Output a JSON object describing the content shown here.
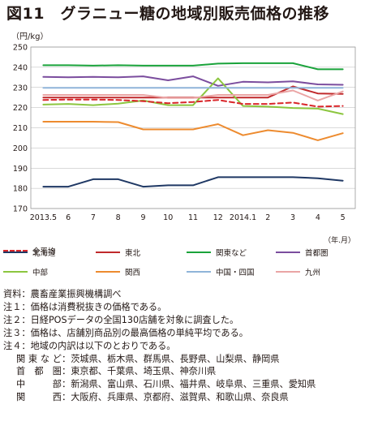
{
  "title": "図11　グラニュー糖の地域別販売価格の推移",
  "chart_data": {
    "type": "line",
    "y_unit": "（円/kg）",
    "x_unit": "（年.月）",
    "categories": [
      "2013.5",
      "6",
      "7",
      "8",
      "9",
      "10",
      "11",
      "12",
      "2014.1",
      "2",
      "3",
      "4",
      "5"
    ],
    "ylim": [
      170,
      250
    ],
    "yticks": [
      170,
      180,
      190,
      200,
      210,
      220,
      230,
      240,
      250
    ],
    "grid": true,
    "legend_position": "bottom",
    "series": [
      {
        "name": "北海道",
        "color": "#1f3864",
        "dash": false,
        "values": [
          180.8,
          180.8,
          184.5,
          184.5,
          180.8,
          181.5,
          181.5,
          185.5,
          185.5,
          185.5,
          185.5,
          185,
          183.8
        ]
      },
      {
        "name": "東北",
        "color": "#c0292b",
        "dash": false,
        "values": [
          225,
          225,
          225,
          225,
          225,
          225,
          225,
          225,
          225,
          225,
          230.5,
          227,
          226.8
        ]
      },
      {
        "name": "関東など",
        "color": "#1aa33b",
        "dash": false,
        "values": [
          241,
          241,
          240.8,
          241,
          240.8,
          240.8,
          240.8,
          241.8,
          242,
          242,
          242,
          239,
          239
        ]
      },
      {
        "name": "首都圏",
        "color": "#7b4d9e",
        "dash": false,
        "values": [
          235.2,
          235,
          235.2,
          235,
          235.5,
          233.5,
          235.5,
          230.8,
          232.8,
          232.5,
          233,
          231.5,
          231.3
        ]
      },
      {
        "name": "中部",
        "color": "#8cc63f",
        "dash": false,
        "values": [
          221.5,
          221.8,
          221.2,
          222,
          223.5,
          221.2,
          221.2,
          234.5,
          220.8,
          220.5,
          219.8,
          219.5,
          216.8
        ]
      },
      {
        "name": "関西",
        "color": "#ed8b2f",
        "dash": false,
        "values": [
          213,
          213,
          213,
          212.8,
          209.2,
          209.2,
          209.2,
          211.8,
          206.3,
          208.8,
          207.5,
          203.8,
          207.3
        ]
      },
      {
        "name": "中国・四国",
        "color": "#8fb4d9",
        "dash": false,
        "values": [
          229.8,
          229.8,
          229.8,
          229.8,
          229.8,
          229.8,
          229.8,
          229.8,
          229.8,
          229.8,
          229.8,
          229.8,
          229.8
        ]
      },
      {
        "name": "九州",
        "color": "#eaa5a5",
        "dash": false,
        "values": [
          226.3,
          226.3,
          226.3,
          226.3,
          226.3,
          224.8,
          224.8,
          226.3,
          226.3,
          226.3,
          228.5,
          223.5,
          228
        ]
      },
      {
        "name": "全平均",
        "color": "#d9262a",
        "dash": true,
        "values": [
          223.8,
          224,
          224,
          223.8,
          223.2,
          222.2,
          222.8,
          223.8,
          221.8,
          221.8,
          222.5,
          220.5,
          220.8
        ]
      }
    ]
  },
  "notes": [
    "資料：農畜産業振興機構調べ",
    "注１：価格は消費税抜きの価格である。",
    "注２：日経POSデータの全国130店舗を対象に調査した。",
    "注３：価格は、店舗別商品別の最高価格の単純平均である。",
    "注４：地域の内訳は以下のとおりである。"
  ],
  "regions": [
    {
      "key": "関東など",
      "value": "：茨城県、栃木県、群馬県、長野県、山梨県、静岡県"
    },
    {
      "key": "首都圏",
      "value": "：東京都、千葉県、埼玉県、神奈川県"
    },
    {
      "key": "中部",
      "value": "：新潟県、富山県、石川県、福井県、岐阜県、三重県、愛知県"
    },
    {
      "key": "関西",
      "value": "：大阪府、兵庫県、京都府、滋賀県、和歌山県、奈良県"
    }
  ]
}
